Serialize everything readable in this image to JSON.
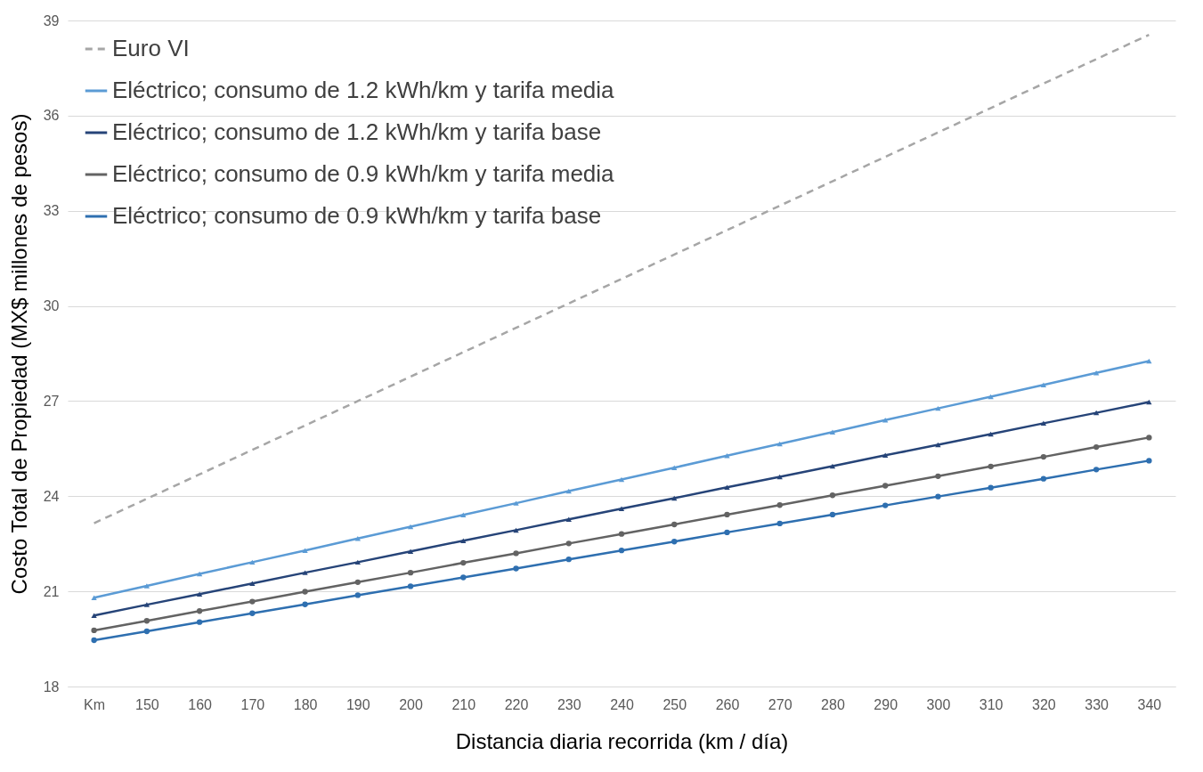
{
  "chart_data": {
    "type": "line",
    "xlabel": "Distancia diaria recorrida (km / día)",
    "ylabel": "Costo Total de Propiedad  (MX$ millones de pesos)",
    "categories": [
      "Km",
      "150",
      "160",
      "170",
      "180",
      "190",
      "200",
      "210",
      "220",
      "230",
      "240",
      "250",
      "260",
      "270",
      "280",
      "290",
      "300",
      "310",
      "320",
      "330",
      "340"
    ],
    "ylim": [
      18,
      39
    ],
    "yticks": [
      18,
      21,
      24,
      27,
      30,
      33,
      36,
      39
    ],
    "grid": "y",
    "legend": "top left",
    "series": [
      {
        "name": "Euro VI",
        "color": "#a6a6a6",
        "marker": "none",
        "line_style": "dashed",
        "values": [
          23.15,
          23.92,
          24.69,
          25.46,
          26.23,
          27.0,
          27.77,
          28.54,
          29.31,
          30.08,
          30.85,
          31.62,
          32.39,
          33.16,
          33.93,
          34.7,
          35.47,
          36.24,
          37.01,
          37.78,
          38.55
        ]
      },
      {
        "name": "Eléctrico; consumo de 1.2 kWh/km y tarifa media",
        "color": "#5b9bd5",
        "marker": "triangle",
        "line_style": "solid",
        "values": [
          20.8,
          21.17,
          21.55,
          21.92,
          22.29,
          22.67,
          23.04,
          23.41,
          23.78,
          24.16,
          24.53,
          24.9,
          25.28,
          25.65,
          26.02,
          26.4,
          26.77,
          27.14,
          27.51,
          27.89,
          28.26
        ]
      },
      {
        "name": "Eléctrico; consumo de 1.2 kWh/km y tarifa base",
        "color": "#264478",
        "marker": "triangle",
        "line_style": "solid",
        "values": [
          20.24,
          20.58,
          20.91,
          21.25,
          21.59,
          21.92,
          22.26,
          22.6,
          22.93,
          23.27,
          23.61,
          23.94,
          24.28,
          24.61,
          24.95,
          25.29,
          25.62,
          25.96,
          26.3,
          26.63,
          26.97
        ]
      },
      {
        "name": "Eléctrico; consumo de 0.9 kWh/km y tarifa media",
        "color": "#636363",
        "marker": "circle",
        "line_style": "solid",
        "values": [
          19.77,
          20.07,
          20.38,
          20.68,
          20.99,
          21.29,
          21.59,
          21.9,
          22.2,
          22.51,
          22.81,
          23.11,
          23.42,
          23.72,
          24.03,
          24.33,
          24.63,
          24.94,
          25.24,
          25.55,
          25.85
        ]
      },
      {
        "name": "Eléctrico; consumo de 0.9 kWh/km y tarifa base",
        "color": "#2e6fb0",
        "marker": "circle",
        "line_style": "solid",
        "values": [
          19.46,
          19.74,
          20.03,
          20.31,
          20.59,
          20.88,
          21.16,
          21.44,
          21.72,
          22.01,
          22.29,
          22.57,
          22.86,
          23.14,
          23.42,
          23.71,
          23.99,
          24.27,
          24.55,
          24.84,
          25.12
        ]
      }
    ]
  }
}
